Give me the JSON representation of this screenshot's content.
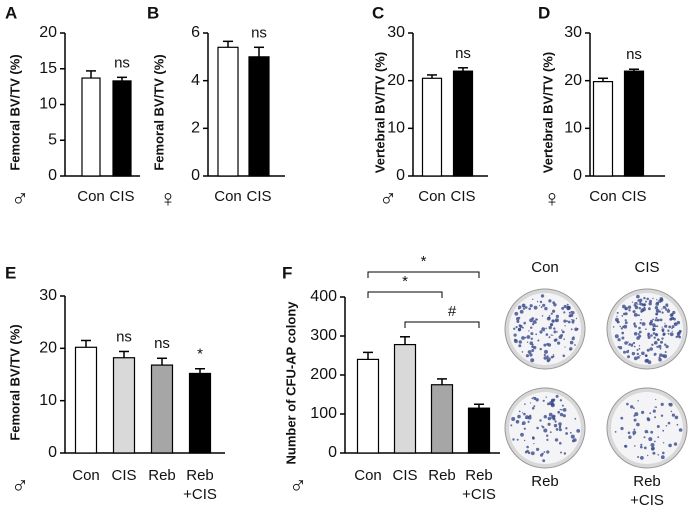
{
  "chart_data": [
    {
      "type": "bar",
      "panel": "A",
      "ylabel": "Femoral BV/TV (%)",
      "sex_symbol": "♂",
      "categories": [
        "Con",
        "CIS"
      ],
      "values": [
        13.7,
        13.3
      ],
      "errors": [
        1.0,
        0.5
      ],
      "colors": [
        "#ffffff",
        "#000000"
      ],
      "ylim": [
        0,
        20
      ],
      "yticks": [
        0,
        5,
        10,
        15,
        20
      ],
      "bar_labels": [
        null,
        "ns"
      ]
    },
    {
      "type": "bar",
      "panel": "B",
      "ylabel": "Femoral BV/TV (%)",
      "sex_symbol": "♀",
      "categories": [
        "Con",
        "CIS"
      ],
      "values": [
        5.4,
        5.0
      ],
      "errors": [
        0.25,
        0.4
      ],
      "colors": [
        "#ffffff",
        "#000000"
      ],
      "ylim": [
        0,
        6
      ],
      "yticks": [
        0,
        2,
        4,
        6
      ],
      "bar_labels": [
        null,
        "ns"
      ]
    },
    {
      "type": "bar",
      "panel": "C",
      "ylabel": "Vertebral BV/TV (%)",
      "sex_symbol": "♂",
      "categories": [
        "Con",
        "CIS"
      ],
      "values": [
        20.5,
        22.0
      ],
      "errors": [
        0.7,
        0.7
      ],
      "colors": [
        "#ffffff",
        "#000000"
      ],
      "ylim": [
        0,
        30
      ],
      "yticks": [
        0,
        10,
        20,
        30
      ],
      "bar_labels": [
        null,
        "ns"
      ]
    },
    {
      "type": "bar",
      "panel": "D",
      "ylabel": "Vertebral BV/TV (%)",
      "sex_symbol": "♀",
      "categories": [
        "Con",
        "CIS"
      ],
      "values": [
        19.8,
        22.0
      ],
      "errors": [
        0.7,
        0.4
      ],
      "colors": [
        "#ffffff",
        "#000000"
      ],
      "ylim": [
        0,
        30
      ],
      "yticks": [
        0,
        10,
        20,
        30
      ],
      "bar_labels": [
        null,
        "ns"
      ]
    },
    {
      "type": "bar",
      "panel": "E",
      "ylabel": "Femoral BV/TV (%)",
      "sex_symbol": "♂",
      "categories": [
        "Con",
        "CIS",
        "Reb",
        "Reb\n+CIS"
      ],
      "values": [
        20.2,
        18.2,
        16.8,
        15.2
      ],
      "errors": [
        1.3,
        1.2,
        1.3,
        0.9
      ],
      "colors": [
        "#ffffff",
        "#d9d9d9",
        "#a6a6a6",
        "#000000"
      ],
      "ylim": [
        0,
        30
      ],
      "yticks": [
        0,
        10,
        20,
        30
      ],
      "bar_labels": [
        null,
        "ns",
        "ns",
        "*"
      ]
    },
    {
      "type": "bar",
      "panel": "F",
      "ylabel": "Number of CFU-AP colony",
      "sex_symbol": "♂",
      "categories": [
        "Con",
        "CIS",
        "Reb",
        "Reb\n+CIS"
      ],
      "values": [
        240,
        278,
        175,
        115
      ],
      "errors": [
        18,
        20,
        15,
        10
      ],
      "colors": [
        "#ffffff",
        "#d9d9d9",
        "#a6a6a6",
        "#000000"
      ],
      "ylim": [
        0,
        400
      ],
      "yticks": [
        0,
        100,
        200,
        300,
        400
      ],
      "brackets": [
        {
          "between": [
            0,
            3
          ],
          "label": "*"
        },
        {
          "between": [
            0,
            2
          ],
          "label": "*"
        },
        {
          "between": [
            1,
            3
          ],
          "label": "#"
        }
      ]
    }
  ],
  "image_panel": {
    "labels": [
      "Con",
      "CIS",
      "Reb",
      "Reb\n+CIS"
    ]
  }
}
